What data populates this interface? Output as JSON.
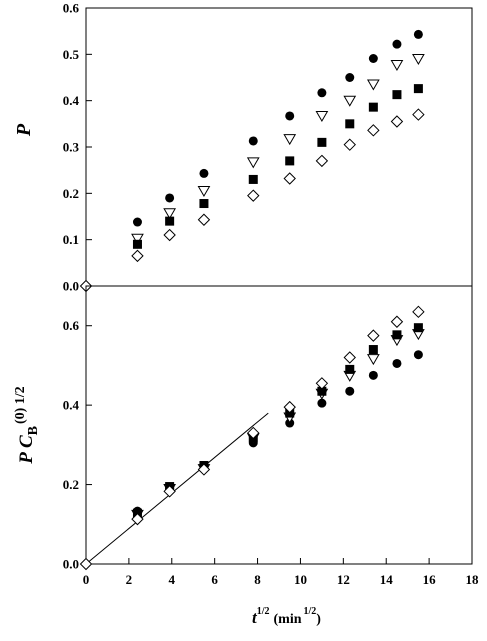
{
  "chart_data": [
    {
      "type": "scatter",
      "ylabel": "P",
      "ylim": [
        0,
        0.6
      ],
      "yticks": [
        "0.0",
        "0.1",
        "0.2",
        "0.3",
        "0.4",
        "0.5",
        "0.6"
      ],
      "xlim": [
        0,
        18
      ],
      "series": [
        {
          "marker": "filled-circle",
          "color": "#000000",
          "x": [
            2.4,
            3.9,
            5.5,
            7.8,
            9.5,
            11.0,
            12.3,
            13.4,
            14.5,
            15.5
          ],
          "y": [
            0.138,
            0.19,
            0.243,
            0.313,
            0.367,
            0.417,
            0.45,
            0.491,
            0.522,
            0.543
          ]
        },
        {
          "marker": "open-triangle-down",
          "color": "#000000",
          "x": [
            2.4,
            3.9,
            5.5,
            7.8,
            9.5,
            11.0,
            12.3,
            13.4,
            14.5,
            15.5
          ],
          "y": [
            0.103,
            0.158,
            0.206,
            0.268,
            0.318,
            0.368,
            0.401,
            0.436,
            0.478,
            0.491
          ]
        },
        {
          "marker": "filled-square",
          "color": "#000000",
          "x": [
            2.4,
            3.9,
            5.5,
            7.8,
            9.5,
            11.0,
            12.3,
            13.4,
            14.5,
            15.5
          ],
          "y": [
            0.09,
            0.14,
            0.178,
            0.23,
            0.27,
            0.31,
            0.35,
            0.386,
            0.413,
            0.426
          ]
        },
        {
          "marker": "open-diamond",
          "color": "#000000",
          "x": [
            2.4,
            3.9,
            5.5,
            7.8,
            9.5,
            11.0,
            12.3,
            13.4,
            14.5,
            15.5
          ],
          "y": [
            0.065,
            0.11,
            0.143,
            0.195,
            0.232,
            0.27,
            0.305,
            0.336,
            0.355,
            0.37
          ]
        },
        {
          "marker": "open-diamond",
          "color": "#000000",
          "x": [
            0
          ],
          "y": [
            0
          ]
        }
      ]
    },
    {
      "type": "scatter",
      "ylabel_main": "P C",
      "ylabel_sub": "B",
      "ylabel_sup": "(0) 1/2",
      "ylim": [
        0,
        0.7
      ],
      "yticks": [
        "0.0",
        "0.2",
        "0.4",
        "0.6"
      ],
      "xlim": [
        0,
        18
      ],
      "xticks": [
        "0",
        "2",
        "4",
        "6",
        "8",
        "10",
        "12",
        "14",
        "16",
        "18"
      ],
      "xlabel_main": "t",
      "xlabel_sup": "1/2",
      "xlabel_unit": "(min",
      "xlabel_unit_sup": "1/2",
      "xlabel_close": ")",
      "fit_line": {
        "x": [
          0,
          8.5
        ],
        "y": [
          0,
          0.38
        ]
      },
      "series": [
        {
          "marker": "filled-circle",
          "color": "#000000",
          "x": [
            2.4,
            3.9,
            5.5,
            7.8,
            9.5,
            11.0,
            12.3,
            13.4,
            14.5,
            15.5
          ],
          "y": [
            0.133,
            0.19,
            0.24,
            0.305,
            0.355,
            0.405,
            0.435,
            0.475,
            0.505,
            0.527
          ]
        },
        {
          "marker": "open-triangle-down",
          "color": "#000000",
          "x": [
            2.4,
            3.9,
            5.5,
            7.8,
            9.5,
            11.0,
            12.3,
            13.4,
            14.5,
            15.5
          ],
          "y": [
            0.125,
            0.19,
            0.24,
            0.318,
            0.37,
            0.43,
            0.475,
            0.517,
            0.565,
            0.58
          ]
        },
        {
          "marker": "filled-square",
          "color": "#000000",
          "x": [
            2.4,
            3.9,
            5.5,
            7.8,
            9.5,
            11.0,
            12.3,
            13.4,
            14.5,
            15.5
          ],
          "y": [
            0.128,
            0.195,
            0.248,
            0.318,
            0.38,
            0.435,
            0.49,
            0.54,
            0.577,
            0.595
          ]
        },
        {
          "marker": "open-diamond",
          "color": "#000000",
          "x": [
            2.4,
            3.9,
            5.5,
            7.8,
            9.5,
            11.0,
            12.3,
            13.4,
            14.5,
            15.5
          ],
          "y": [
            0.113,
            0.183,
            0.238,
            0.33,
            0.395,
            0.455,
            0.52,
            0.575,
            0.61,
            0.635
          ]
        },
        {
          "marker": "open-diamond",
          "color": "#000000",
          "x": [
            0
          ],
          "y": [
            0
          ]
        }
      ]
    }
  ]
}
